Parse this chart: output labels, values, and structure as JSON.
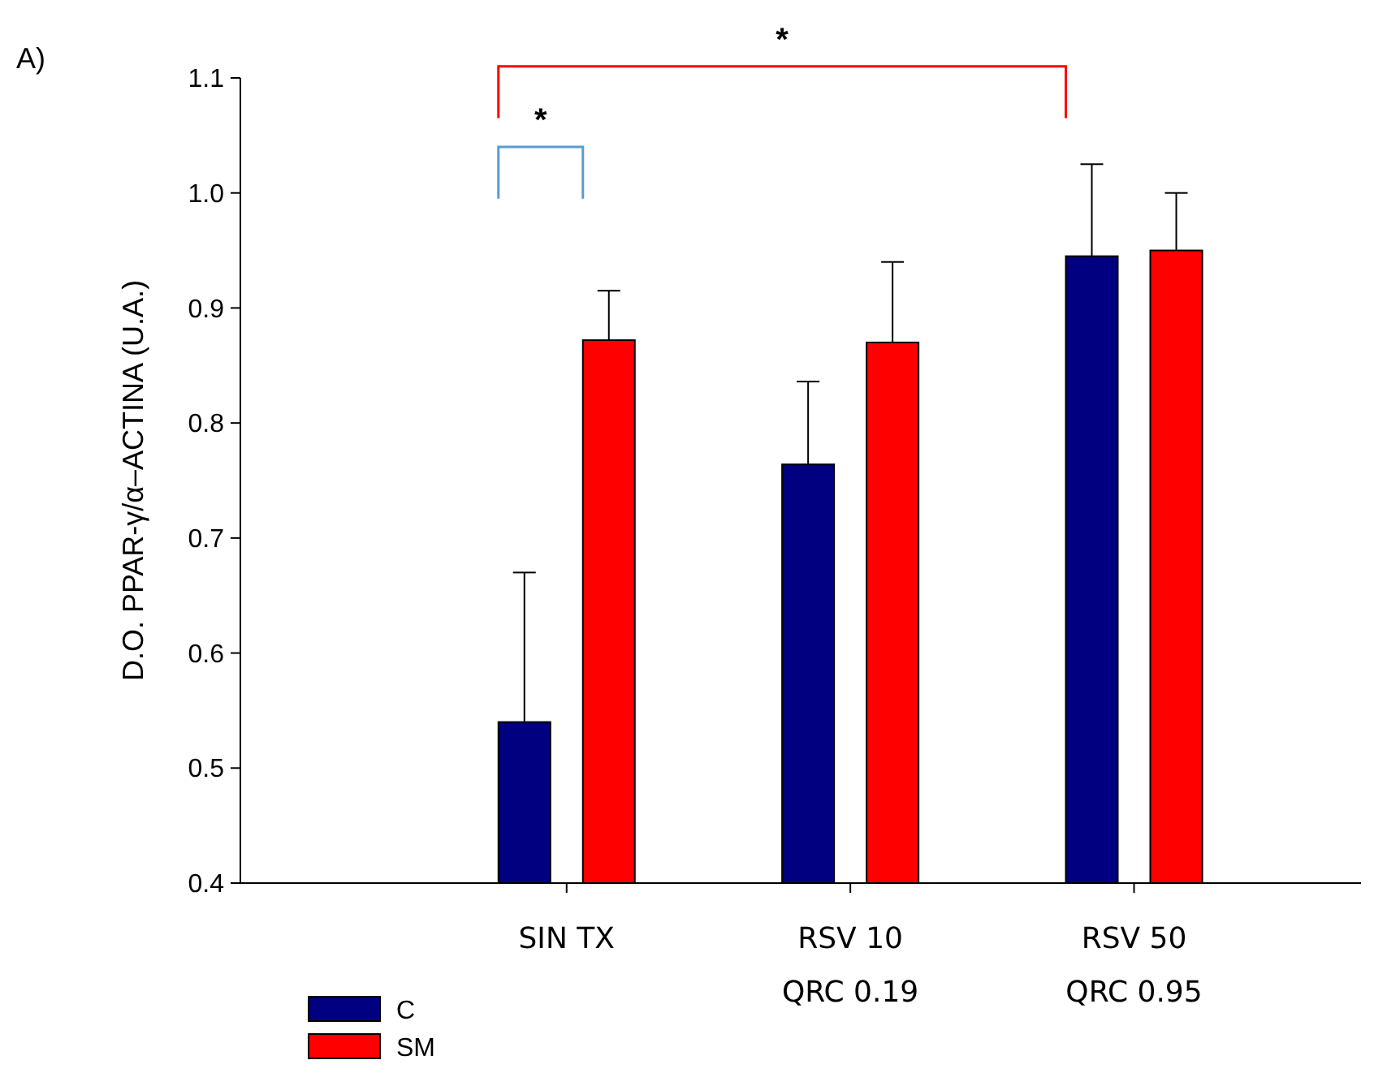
{
  "chart_data": {
    "type": "bar",
    "categories": [
      "SIN TX",
      "RSV 10\nQRC 0.19",
      "RSV 50\nQRC 0.95"
    ],
    "ylabel": "D.O. PPAR-γ/α–ACTINA (U.A.)",
    "series": [
      {
        "name": "C",
        "color": "#000080",
        "values": [
          0.54,
          0.764,
          0.945
        ],
        "errors": [
          [
            0.54,
            0.67
          ],
          [
            0.764,
            0.836
          ],
          [
            0.945,
            1.025
          ]
        ]
      },
      {
        "name": "SM",
        "color": "#ff0000",
        "values": [
          0.872,
          0.87,
          0.95
        ],
        "errors": [
          [
            0.872,
            0.915
          ],
          [
            0.87,
            0.94
          ],
          [
            0.95,
            1.0
          ]
        ]
      }
    ],
    "ylim": [
      0.4,
      1.1
    ],
    "yticks": [
      {
        "value": 0.4,
        "label": "0.4"
      },
      {
        "value": 0.5,
        "label": "0.5"
      },
      {
        "value": 0.6,
        "label": "0.6"
      },
      {
        "value": 0.7,
        "label": "0.7"
      },
      {
        "value": 0.8,
        "label": "0.8"
      },
      {
        "value": 0.9,
        "label": "0.9"
      },
      {
        "value": 1.0,
        "label": "1.0"
      },
      {
        "value": 1.1,
        "label": "1.1"
      }
    ],
    "grid": false,
    "legend": "bottom left",
    "annotations": [
      "A)",
      "*",
      "*"
    ]
  }
}
